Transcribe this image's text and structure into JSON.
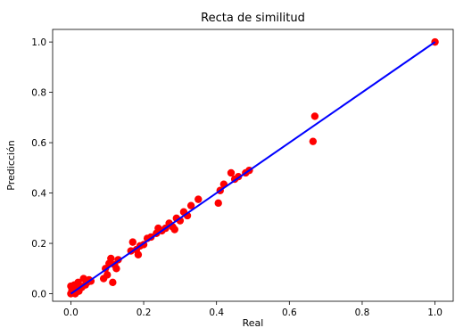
{
  "chart_data": {
    "type": "scatter",
    "title": "Recta de similitud",
    "xlabel": "Real",
    "ylabel": "Predicción",
    "xlim": [
      -0.05,
      1.05
    ],
    "ylim": [
      -0.03,
      1.05
    ],
    "xticks": [
      "0.0",
      "0.2",
      "0.4",
      "0.6",
      "0.8",
      "1.0"
    ],
    "yticks": [
      "0.0",
      "0.2",
      "0.4",
      "0.6",
      "0.8",
      "1.0"
    ],
    "grid": false,
    "legend": "none",
    "series": [
      {
        "kind": "scatter",
        "color": "#ff0000",
        "x": [
          0.0,
          0.0,
          0.003,
          0.01,
          0.012,
          0.015,
          0.02,
          0.022,
          0.025,
          0.03,
          0.035,
          0.04,
          0.045,
          0.05,
          0.055,
          0.09,
          0.095,
          0.1,
          0.105,
          0.11,
          0.115,
          0.12,
          0.125,
          0.13,
          0.165,
          0.17,
          0.18,
          0.185,
          0.19,
          0.2,
          0.21,
          0.22,
          0.235,
          0.24,
          0.25,
          0.26,
          0.27,
          0.28,
          0.285,
          0.29,
          0.3,
          0.31,
          0.32,
          0.33,
          0.35,
          0.405,
          0.41,
          0.42,
          0.44,
          0.45,
          0.46,
          0.48,
          0.49,
          0.665,
          0.67,
          1.0
        ],
        "y": [
          0.0,
          0.03,
          0.015,
          0.035,
          0.0,
          0.02,
          0.045,
          0.01,
          0.03,
          0.025,
          0.06,
          0.035,
          0.045,
          0.055,
          0.05,
          0.06,
          0.1,
          0.075,
          0.12,
          0.14,
          0.045,
          0.115,
          0.1,
          0.135,
          0.17,
          0.205,
          0.175,
          0.155,
          0.19,
          0.195,
          0.22,
          0.225,
          0.24,
          0.26,
          0.25,
          0.26,
          0.28,
          0.265,
          0.255,
          0.3,
          0.29,
          0.325,
          0.31,
          0.35,
          0.375,
          0.36,
          0.41,
          0.435,
          0.48,
          0.455,
          0.465,
          0.48,
          0.49,
          0.605,
          0.705,
          1.0
        ]
      },
      {
        "kind": "line",
        "color": "#0000ff",
        "x": [
          0.0,
          1.0
        ],
        "y": [
          0.0,
          1.0
        ]
      }
    ]
  }
}
